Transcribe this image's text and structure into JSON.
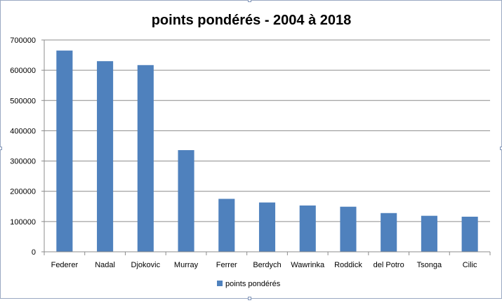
{
  "chart_data": {
    "type": "bar",
    "title": "points pondérés  - 2004 à 2018",
    "categories": [
      "Federer",
      "Nadal",
      "Djokovic",
      "Murray",
      "Ferrer",
      "Berdych",
      "Wawrinka",
      "Roddick",
      "del Potro",
      "Tsonga",
      "Cilic"
    ],
    "series": [
      {
        "name": "points pondérés",
        "color": "#4f81bd",
        "values": [
          665000,
          630000,
          617000,
          336000,
          175000,
          163000,
          153000,
          149000,
          128000,
          119000,
          116000
        ]
      }
    ],
    "ylim": [
      0,
      700000
    ],
    "yticks": [
      "0",
      "100000",
      "200000",
      "300000",
      "400000",
      "500000",
      "600000",
      "700000"
    ],
    "xlabel": "",
    "ylabel": "",
    "grid": true,
    "legend_position": "bottom"
  }
}
